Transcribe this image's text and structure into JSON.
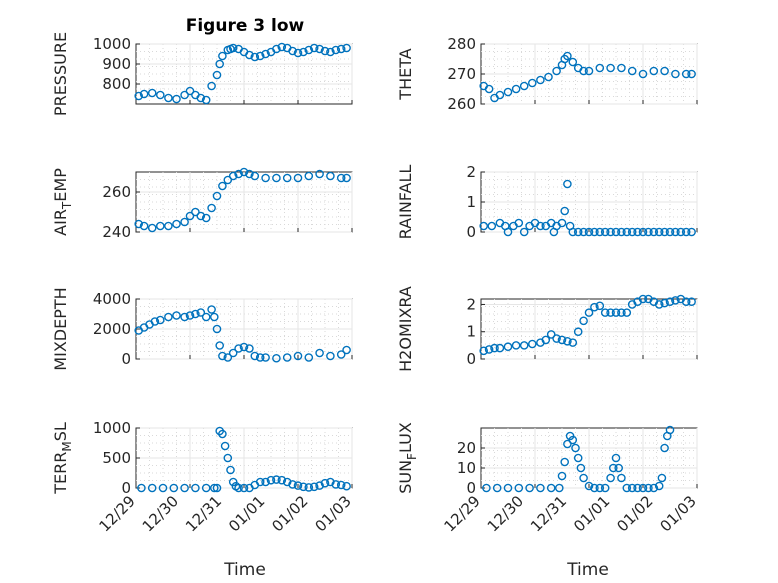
{
  "figure": {
    "title": "Figure 3 low",
    "color_series": "#0072bd"
  },
  "chart_data": [
    {
      "type": "scatter",
      "ylabel": "PRESSURE",
      "title": "Figure 3 low",
      "xlim": [
        0,
        4
      ],
      "ylim": [
        700,
        1000
      ],
      "yticks": [
        800,
        900,
        1000
      ],
      "grid": true,
      "series": [
        {
          "x": [
            0.05,
            0.15,
            0.3,
            0.45,
            0.6,
            0.75,
            0.9,
            1.0,
            1.1,
            1.2,
            1.3,
            1.4,
            1.5,
            1.55,
            1.6,
            1.7,
            1.75,
            1.8,
            1.9,
            2.0,
            2.1,
            2.2,
            2.3,
            2.4,
            2.5,
            2.6,
            2.7,
            2.8,
            2.9,
            3.0,
            3.1,
            3.2,
            3.3,
            3.4,
            3.5,
            3.6,
            3.7,
            3.8,
            3.9
          ],
          "y": [
            740,
            750,
            755,
            745,
            730,
            725,
            745,
            765,
            745,
            730,
            720,
            790,
            845,
            900,
            940,
            970,
            975,
            980,
            975,
            960,
            945,
            935,
            940,
            950,
            960,
            975,
            985,
            980,
            965,
            955,
            960,
            970,
            980,
            975,
            965,
            960,
            970,
            975,
            980
          ]
        }
      ]
    },
    {
      "type": "scatter",
      "ylabel": "THETA",
      "xlim": [
        0,
        4
      ],
      "ylim": [
        260,
        280
      ],
      "yticks": [
        260,
        270,
        280
      ],
      "grid": true,
      "series": [
        {
          "x": [
            0.05,
            0.15,
            0.25,
            0.35,
            0.5,
            0.65,
            0.8,
            0.95,
            1.1,
            1.25,
            1.4,
            1.5,
            1.55,
            1.6,
            1.7,
            1.8,
            1.9,
            2.0,
            2.2,
            2.4,
            2.6,
            2.8,
            3.0,
            3.2,
            3.4,
            3.6,
            3.8,
            3.9
          ],
          "y": [
            266,
            265,
            262,
            263,
            264,
            265,
            266,
            267,
            268,
            269,
            271,
            273,
            275,
            276,
            274,
            272,
            271,
            271,
            272,
            272,
            272,
            271,
            270,
            271,
            271,
            270,
            270,
            270
          ]
        }
      ]
    },
    {
      "type": "scatter",
      "ylabel": "AIR_TEMP",
      "xlim": [
        0,
        4
      ],
      "ylim": [
        240,
        270
      ],
      "yticks": [
        240,
        260
      ],
      "grid": true,
      "series": [
        {
          "x": [
            0.05,
            0.15,
            0.3,
            0.45,
            0.6,
            0.75,
            0.9,
            1.0,
            1.1,
            1.2,
            1.3,
            1.4,
            1.5,
            1.6,
            1.7,
            1.8,
            1.9,
            2.0,
            2.1,
            2.2,
            2.4,
            2.6,
            2.8,
            3.0,
            3.2,
            3.4,
            3.6,
            3.8,
            3.9
          ],
          "y": [
            244,
            243,
            242,
            243,
            243,
            244,
            245,
            248,
            250,
            248,
            247,
            252,
            258,
            263,
            266,
            268,
            269,
            270,
            269,
            268,
            267,
            267,
            267,
            267,
            268,
            269,
            268,
            267,
            267
          ]
        }
      ]
    },
    {
      "type": "scatter",
      "ylabel": "RAINFALL",
      "xlim": [
        0,
        4
      ],
      "ylim": [
        0,
        2
      ],
      "yticks": [
        0,
        1,
        2
      ],
      "grid": true,
      "series": [
        {
          "x": [
            0.05,
            0.2,
            0.35,
            0.45,
            0.5,
            0.6,
            0.7,
            0.8,
            0.9,
            1.0,
            1.1,
            1.2,
            1.3,
            1.35,
            1.4,
            1.5,
            1.55,
            1.6,
            1.65,
            1.7,
            1.8,
            1.9,
            2.0,
            2.1,
            2.2,
            2.3,
            2.4,
            2.5,
            2.6,
            2.7,
            2.8,
            2.9,
            3.0,
            3.1,
            3.2,
            3.3,
            3.4,
            3.5,
            3.6,
            3.7,
            3.8,
            3.9
          ],
          "y": [
            0.2,
            0.2,
            0.3,
            0.2,
            0,
            0.2,
            0.3,
            0,
            0.2,
            0.3,
            0.2,
            0.2,
            0.3,
            0,
            0.2,
            0.3,
            0.7,
            1.6,
            0.2,
            0,
            0,
            0,
            0,
            0,
            0,
            0,
            0,
            0,
            0,
            0,
            0,
            0,
            0,
            0,
            0,
            0,
            0,
            0,
            0,
            0,
            0,
            0
          ]
        }
      ]
    },
    {
      "type": "scatter",
      "ylabel": "MIXDEPTH",
      "xlim": [
        0,
        4
      ],
      "ylim": [
        0,
        4000
      ],
      "yticks": [
        0,
        2000,
        4000
      ],
      "grid": true,
      "series": [
        {
          "x": [
            0.05,
            0.15,
            0.25,
            0.35,
            0.45,
            0.6,
            0.75,
            0.9,
            1.0,
            1.1,
            1.2,
            1.3,
            1.4,
            1.45,
            1.5,
            1.55,
            1.6,
            1.7,
            1.8,
            1.9,
            2.0,
            2.1,
            2.2,
            2.3,
            2.4,
            2.6,
            2.8,
            3.0,
            3.2,
            3.4,
            3.6,
            3.8,
            3.9
          ],
          "y": [
            1900,
            2100,
            2300,
            2500,
            2600,
            2800,
            2900,
            2800,
            2900,
            3000,
            3100,
            2800,
            3300,
            2800,
            2000,
            900,
            200,
            100,
            400,
            700,
            800,
            700,
            200,
            100,
            100,
            50,
            100,
            200,
            100,
            400,
            200,
            300,
            600
          ]
        }
      ]
    },
    {
      "type": "scatter",
      "ylabel": "H2OMIXRA",
      "xlim": [
        0,
        4
      ],
      "ylim": [
        0,
        2.2
      ],
      "yticks": [
        0,
        1,
        2
      ],
      "grid": true,
      "series": [
        {
          "x": [
            0.05,
            0.15,
            0.25,
            0.35,
            0.5,
            0.65,
            0.8,
            0.95,
            1.1,
            1.2,
            1.3,
            1.4,
            1.5,
            1.6,
            1.7,
            1.8,
            1.9,
            2.0,
            2.1,
            2.2,
            2.3,
            2.4,
            2.5,
            2.6,
            2.7,
            2.8,
            2.9,
            3.0,
            3.1,
            3.2,
            3.3,
            3.4,
            3.5,
            3.6,
            3.7,
            3.8,
            3.9
          ],
          "y": [
            0.3,
            0.35,
            0.4,
            0.4,
            0.45,
            0.5,
            0.5,
            0.55,
            0.6,
            0.7,
            0.9,
            0.75,
            0.7,
            0.65,
            0.6,
            1.0,
            1.4,
            1.7,
            1.9,
            1.95,
            1.7,
            1.7,
            1.7,
            1.7,
            1.7,
            2.0,
            2.1,
            2.2,
            2.2,
            2.1,
            2.0,
            2.05,
            2.1,
            2.15,
            2.2,
            2.1,
            2.1
          ]
        }
      ]
    },
    {
      "type": "scatter",
      "ylabel": "TERR_MSL",
      "xlim": [
        0,
        4
      ],
      "ylim": [
        0,
        1000
      ],
      "yticks": [
        0,
        500,
        1000
      ],
      "grid": true,
      "xticks": [
        "12/29",
        "12/30",
        "12/31",
        "01/01",
        "01/02",
        "01/03"
      ],
      "xlabel": "Time",
      "series": [
        {
          "x": [
            0.1,
            0.3,
            0.5,
            0.7,
            0.9,
            1.1,
            1.3,
            1.45,
            1.5,
            1.55,
            1.6,
            1.65,
            1.7,
            1.75,
            1.8,
            1.85,
            1.9,
            2.0,
            2.1,
            2.2,
            2.3,
            2.4,
            2.5,
            2.6,
            2.7,
            2.8,
            2.9,
            3.0,
            3.1,
            3.2,
            3.3,
            3.4,
            3.5,
            3.6,
            3.7,
            3.8,
            3.9
          ],
          "y": [
            0,
            0,
            0,
            0,
            0,
            0,
            0,
            0,
            0,
            950,
            900,
            700,
            500,
            300,
            100,
            30,
            0,
            0,
            0,
            50,
            100,
            100,
            130,
            140,
            130,
            100,
            60,
            40,
            20,
            10,
            20,
            40,
            80,
            100,
            60,
            50,
            30
          ]
        }
      ]
    },
    {
      "type": "scatter",
      "ylabel": "SUN_FLUX",
      "xlim": [
        0,
        4
      ],
      "ylim": [
        0,
        30
      ],
      "yticks": [
        0,
        10,
        20
      ],
      "grid": true,
      "xticks": [
        "12/29",
        "12/30",
        "12/31",
        "01/01",
        "01/02",
        "01/03"
      ],
      "xlabel": "Time",
      "series": [
        {
          "x": [
            0.1,
            0.3,
            0.5,
            0.7,
            0.9,
            1.1,
            1.3,
            1.45,
            1.5,
            1.55,
            1.6,
            1.65,
            1.7,
            1.75,
            1.8,
            1.85,
            1.9,
            2.0,
            2.1,
            2.2,
            2.3,
            2.4,
            2.45,
            2.5,
            2.55,
            2.6,
            2.7,
            2.8,
            2.9,
            3.0,
            3.1,
            3.2,
            3.3,
            3.35,
            3.4,
            3.45,
            3.5
          ],
          "y": [
            0,
            0,
            0,
            0,
            0,
            0,
            0,
            0,
            6,
            13,
            22,
            26,
            24,
            20,
            15,
            10,
            5,
            1,
            0,
            0,
            0,
            5,
            10,
            15,
            10,
            5,
            0,
            0,
            0,
            0,
            0,
            0,
            1,
            5,
            20,
            26,
            29
          ]
        }
      ]
    }
  ]
}
